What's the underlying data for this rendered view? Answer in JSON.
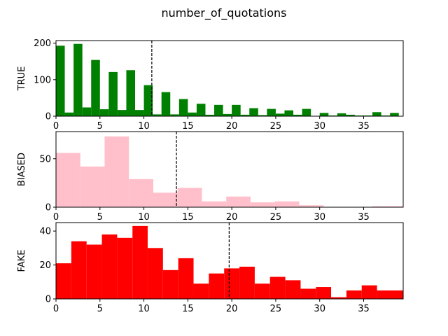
{
  "figure": {
    "title": "number_of_quotations"
  },
  "chart_data": [
    {
      "type": "bar",
      "name": "",
      "ylabel": "TRUE",
      "color": "#008000",
      "xlim": [
        0,
        39.5
      ],
      "ylim": [
        0,
        207
      ],
      "xticks": [
        0,
        5,
        10,
        15,
        20,
        25,
        30,
        35
      ],
      "yticks": [
        0,
        100,
        200
      ],
      "mean_line": 10.9,
      "bins": [
        {
          "x0": 0.0,
          "x1": 1.0,
          "value": 193
        },
        {
          "x0": 1.0,
          "x1": 2.0,
          "value": 10
        },
        {
          "x0": 2.0,
          "x1": 3.0,
          "value": 198
        },
        {
          "x0": 3.0,
          "x1": 4.0,
          "value": 24
        },
        {
          "x0": 4.0,
          "x1": 5.0,
          "value": 154
        },
        {
          "x0": 5.0,
          "x1": 6.0,
          "value": 19
        },
        {
          "x0": 6.0,
          "x1": 7.0,
          "value": 121
        },
        {
          "x0": 7.0,
          "x1": 8.0,
          "value": 17
        },
        {
          "x0": 8.0,
          "x1": 9.0,
          "value": 126
        },
        {
          "x0": 9.0,
          "x1": 10.0,
          "value": 17
        },
        {
          "x0": 10.0,
          "x1": 11.0,
          "value": 85
        },
        {
          "x0": 11.0,
          "x1": 12.0,
          "value": 5
        },
        {
          "x0": 12.0,
          "x1": 13.0,
          "value": 66
        },
        {
          "x0": 13.0,
          "x1": 14.0,
          "value": 5
        },
        {
          "x0": 14.0,
          "x1": 15.0,
          "value": 47
        },
        {
          "x0": 15.0,
          "x1": 16.0,
          "value": 10
        },
        {
          "x0": 16.0,
          "x1": 17.0,
          "value": 34
        },
        {
          "x0": 17.0,
          "x1": 18.0,
          "value": 4
        },
        {
          "x0": 18.0,
          "x1": 19.0,
          "value": 31
        },
        {
          "x0": 19.0,
          "x1": 20.0,
          "value": 6
        },
        {
          "x0": 20.0,
          "x1": 21.0,
          "value": 31
        },
        {
          "x0": 21.0,
          "x1": 22.0,
          "value": 4
        },
        {
          "x0": 22.0,
          "x1": 23.0,
          "value": 22
        },
        {
          "x0": 23.0,
          "x1": 24.0,
          "value": 3
        },
        {
          "x0": 24.0,
          "x1": 25.0,
          "value": 20
        },
        {
          "x0": 25.0,
          "x1": 26.0,
          "value": 7
        },
        {
          "x0": 26.0,
          "x1": 27.0,
          "value": 16
        },
        {
          "x0": 27.0,
          "x1": 28.0,
          "value": 4
        },
        {
          "x0": 28.0,
          "x1": 29.0,
          "value": 20
        },
        {
          "x0": 29.0,
          "x1": 30.0,
          "value": 1
        },
        {
          "x0": 30.0,
          "x1": 31.0,
          "value": 9
        },
        {
          "x0": 31.0,
          "x1": 32.0,
          "value": 2
        },
        {
          "x0": 32.0,
          "x1": 33.0,
          "value": 8
        },
        {
          "x0": 33.0,
          "x1": 34.0,
          "value": 4
        },
        {
          "x0": 34.0,
          "x1": 35.0,
          "value": 2
        },
        {
          "x0": 35.0,
          "x1": 36.0,
          "value": 2
        },
        {
          "x0": 36.0,
          "x1": 37.0,
          "value": 11
        },
        {
          "x0": 37.0,
          "x1": 38.0,
          "value": 2
        },
        {
          "x0": 38.0,
          "x1": 39.0,
          "value": 9
        }
      ]
    },
    {
      "type": "bar",
      "name": "",
      "ylabel": "BIASED",
      "color": "#ffc0cb",
      "xlim": [
        0,
        39.5
      ],
      "ylim": [
        0,
        78
      ],
      "xticks": [
        0,
        5,
        10,
        15,
        20,
        25,
        30,
        35
      ],
      "yticks": [
        0,
        50
      ],
      "mean_line": 13.7,
      "bins": [
        {
          "x0": 0.0,
          "x1": 2.77,
          "value": 56
        },
        {
          "x0": 2.77,
          "x1": 5.53,
          "value": 42
        },
        {
          "x0": 5.53,
          "x1": 8.3,
          "value": 73
        },
        {
          "x0": 8.3,
          "x1": 11.07,
          "value": 29
        },
        {
          "x0": 11.07,
          "x1": 13.83,
          "value": 15
        },
        {
          "x0": 13.83,
          "x1": 16.6,
          "value": 20
        },
        {
          "x0": 16.6,
          "x1": 19.37,
          "value": 6
        },
        {
          "x0": 19.37,
          "x1": 22.13,
          "value": 11
        },
        {
          "x0": 22.13,
          "x1": 24.9,
          "value": 5
        },
        {
          "x0": 24.9,
          "x1": 27.67,
          "value": 6
        },
        {
          "x0": 27.67,
          "x1": 30.43,
          "value": 2
        },
        {
          "x0": 30.43,
          "x1": 33.2,
          "value": 0
        },
        {
          "x0": 33.2,
          "x1": 35.97,
          "value": 0
        },
        {
          "x0": 35.97,
          "x1": 39.5,
          "value": 1
        }
      ]
    },
    {
      "type": "bar",
      "name": "",
      "ylabel": "FAKE",
      "color": "#ff0000",
      "xlim": [
        0,
        39.5
      ],
      "ylim": [
        0,
        45
      ],
      "xticks": [
        0,
        5,
        10,
        15,
        20,
        25,
        30,
        35
      ],
      "yticks": [
        0,
        20,
        40
      ],
      "mean_line": 19.7,
      "bins": [
        {
          "x0": 0.0,
          "x1": 1.74,
          "value": 21
        },
        {
          "x0": 1.74,
          "x1": 3.48,
          "value": 34
        },
        {
          "x0": 3.48,
          "x1": 5.22,
          "value": 32
        },
        {
          "x0": 5.22,
          "x1": 6.96,
          "value": 38
        },
        {
          "x0": 6.96,
          "x1": 8.7,
          "value": 36
        },
        {
          "x0": 8.7,
          "x1": 10.43,
          "value": 43
        },
        {
          "x0": 10.43,
          "x1": 12.17,
          "value": 30
        },
        {
          "x0": 12.17,
          "x1": 13.91,
          "value": 17
        },
        {
          "x0": 13.91,
          "x1": 15.65,
          "value": 24
        },
        {
          "x0": 15.65,
          "x1": 17.39,
          "value": 9
        },
        {
          "x0": 17.39,
          "x1": 19.13,
          "value": 15
        },
        {
          "x0": 19.13,
          "x1": 20.87,
          "value": 18
        },
        {
          "x0": 20.87,
          "x1": 22.61,
          "value": 19
        },
        {
          "x0": 22.61,
          "x1": 24.35,
          "value": 9
        },
        {
          "x0": 24.35,
          "x1": 26.09,
          "value": 13
        },
        {
          "x0": 26.09,
          "x1": 27.83,
          "value": 11
        },
        {
          "x0": 27.83,
          "x1": 29.57,
          "value": 6
        },
        {
          "x0": 29.57,
          "x1": 31.3,
          "value": 7
        },
        {
          "x0": 31.3,
          "x1": 33.04,
          "value": 1
        },
        {
          "x0": 33.04,
          "x1": 34.78,
          "value": 5
        },
        {
          "x0": 34.78,
          "x1": 36.52,
          "value": 8
        },
        {
          "x0": 36.52,
          "x1": 39.5,
          "value": 5
        }
      ]
    }
  ]
}
